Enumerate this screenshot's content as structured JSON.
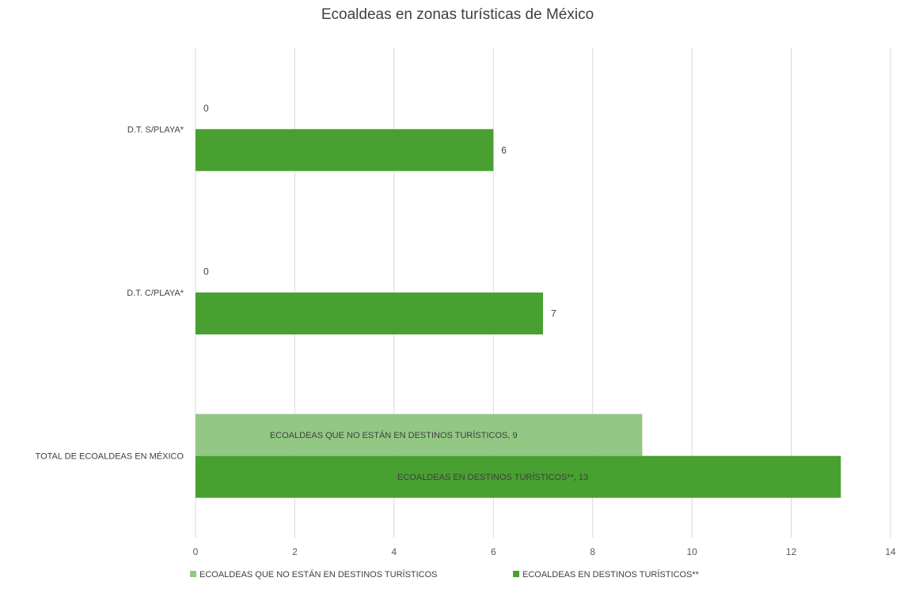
{
  "chart_data": {
    "type": "bar",
    "orientation": "horizontal",
    "title": "Ecoaldeas en zonas turísticas de México",
    "xlabel": "",
    "ylabel": "",
    "categories": [
      "TOTAL DE ECOALDEAS EN MÉXICO",
      "D.T. C/PLAYA*",
      "D.T. S/PLAYA*"
    ],
    "series": [
      {
        "name": "ECOALDEAS QUE NO ESTÁN EN DESTINOS TURÍSTICOS",
        "values": [
          9,
          0,
          0
        ],
        "data_labels": [
          "ECOALDEAS QUE NO ESTÁN EN DESTINOS TURÍSTICOS, 9",
          "0",
          "0"
        ],
        "color": "#92c883"
      },
      {
        "name": "ECOALDEAS EN DESTINOS TURÍSTICOS**",
        "values": [
          13,
          7,
          6
        ],
        "data_labels": [
          "ECOALDEAS EN DESTINOS TURÍSTICOS**, 13",
          "7",
          "6"
        ],
        "color": "#48a030"
      }
    ],
    "xlim": [
      0,
      14
    ],
    "xticks": [
      0,
      2,
      4,
      6,
      8,
      10,
      12,
      14
    ],
    "grid": true,
    "legend_position": "bottom"
  }
}
